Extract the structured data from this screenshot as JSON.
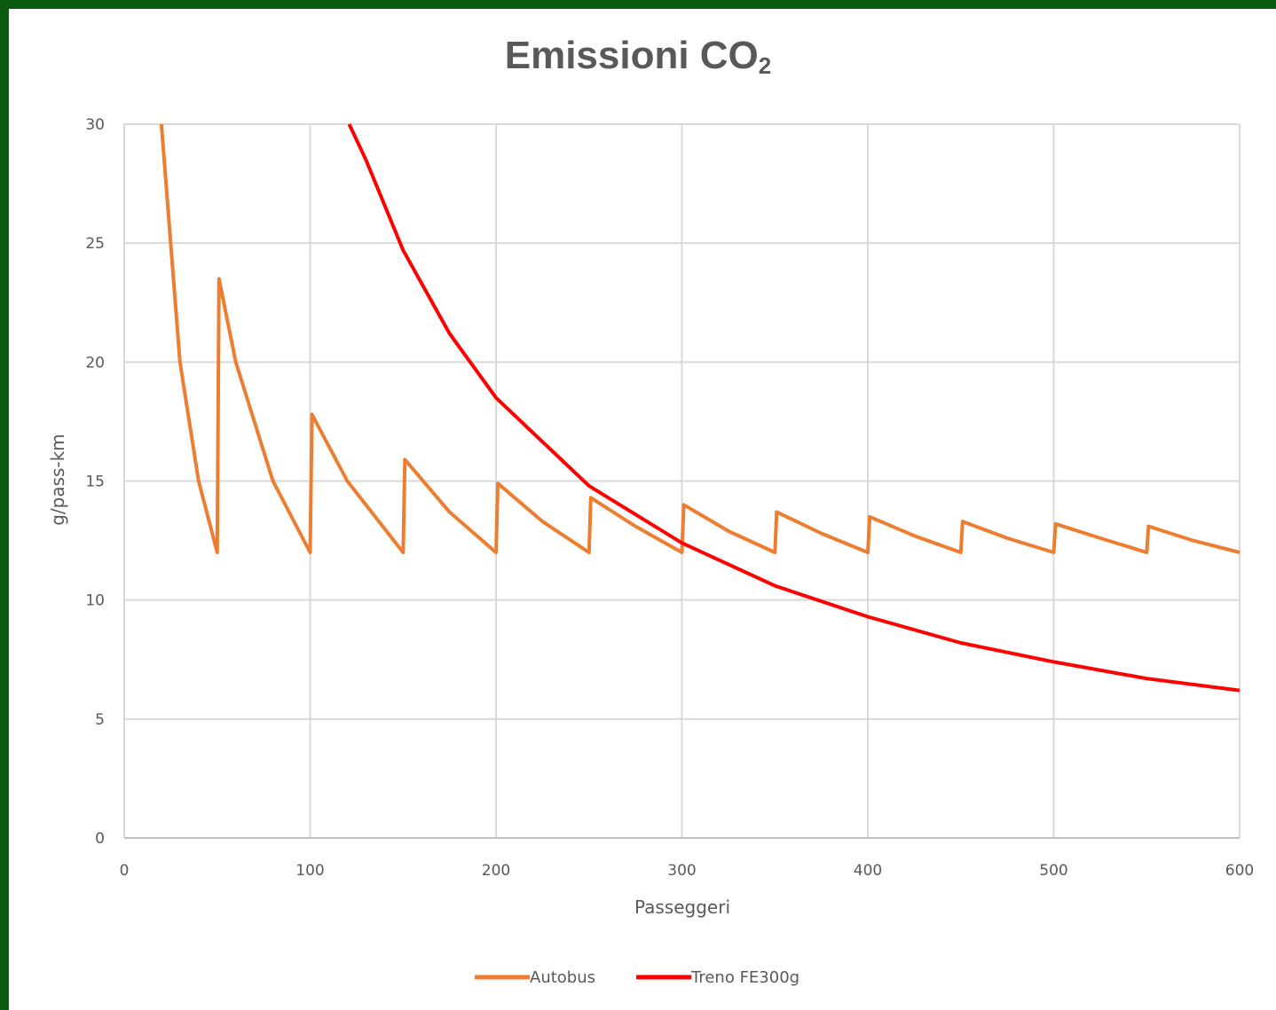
{
  "chart_data": {
    "type": "line",
    "title": "Emissioni CO",
    "title_subscript": "2",
    "xlabel": "Passeggeri",
    "ylabel": "g/pass-km",
    "xlim": [
      0,
      600
    ],
    "ylim": [
      0,
      30
    ],
    "x_ticks": [
      0,
      100,
      200,
      300,
      400,
      500,
      600
    ],
    "y_ticks": [
      0,
      5,
      10,
      15,
      20,
      25,
      30
    ],
    "grid": true,
    "legend_position": "bottom",
    "series": [
      {
        "name": "Autobus",
        "color": "#ed7d31",
        "model": "sawtooth: y = 600/p when p<=50; otherwise y = 600*n/p with n = buses of 50 seats",
        "x": [
          20,
          30,
          40,
          50,
          51,
          60,
          80,
          100,
          101,
          120,
          150,
          151,
          175,
          200,
          201,
          225,
          250,
          251,
          275,
          300,
          301,
          325,
          350,
          351,
          375,
          400,
          401,
          425,
          450,
          451,
          475,
          500,
          501,
          525,
          550,
          551,
          575,
          600
        ],
        "values": [
          30,
          20,
          15,
          12,
          23.5,
          20,
          15,
          12,
          17.8,
          15,
          12,
          15.9,
          13.7,
          12,
          14.9,
          13.3,
          12,
          14.3,
          13.1,
          12,
          14.0,
          12.9,
          12,
          13.7,
          12.8,
          12,
          13.5,
          12.7,
          12,
          13.3,
          12.6,
          12,
          13.2,
          12.6,
          12,
          13.1,
          12.5,
          12
        ]
      },
      {
        "name": "Treno FE300g",
        "color": "#ff0000",
        "x": [
          121,
          130,
          150,
          175,
          200,
          250,
          300,
          350,
          400,
          450,
          500,
          550,
          600
        ],
        "values": [
          30,
          28.5,
          24.7,
          21.2,
          18.5,
          14.8,
          12.4,
          10.6,
          9.3,
          8.2,
          7.4,
          6.7,
          6.2
        ]
      }
    ]
  }
}
